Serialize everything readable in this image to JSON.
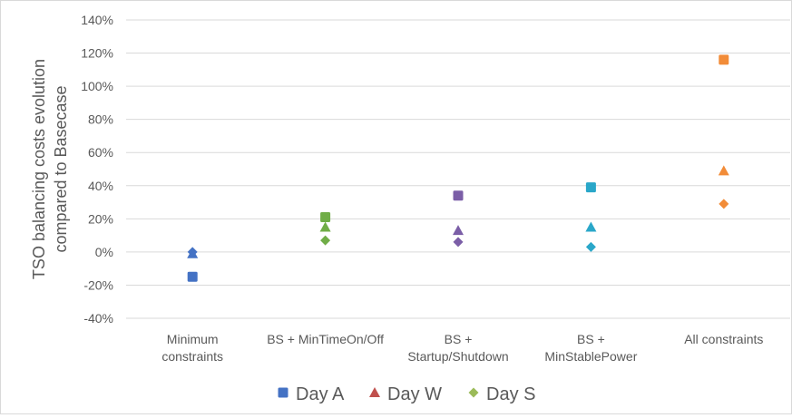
{
  "chart_data": {
    "type": "scatter",
    "ylabel": "TSO balancing costs evolution compared to Basecase",
    "ylabel_lines": [
      "TSO balancing costs evolution",
      "compared to Basecase"
    ],
    "ylim": [
      -40,
      140
    ],
    "yticks": [
      -40,
      -20,
      0,
      20,
      40,
      60,
      80,
      100,
      120,
      140
    ],
    "ytick_labels": [
      "-40%",
      "-20%",
      "0%",
      "20%",
      "40%",
      "60%",
      "80%",
      "100%",
      "120%",
      "140%"
    ],
    "grid": true,
    "legend_position": "bottom",
    "categories": [
      "Minimum constraints",
      "BS + MinTimeOn/Off",
      "BS + Startup/Shutdown",
      "BS + MinStablePower",
      "All constraints"
    ],
    "category_label_lines": [
      [
        "Minimum",
        "constraints"
      ],
      [
        "BS + MinTimeOn/Off"
      ],
      [
        "BS +",
        "Startup/Shutdown"
      ],
      [
        "BS +",
        "MinStablePower"
      ],
      [
        "All constraints"
      ]
    ],
    "category_colors": [
      "#4472c4",
      "#70ad47",
      "#7b5ea7",
      "#2aa7c9",
      "#f28c38"
    ],
    "series": [
      {
        "name": "Day A",
        "marker": "square",
        "legend_color": "#4472c4",
        "values": [
          -15,
          21,
          34,
          39,
          116
        ]
      },
      {
        "name": "Day W",
        "marker": "triangle",
        "legend_color": "#c0504d",
        "values": [
          -1,
          15,
          13,
          15,
          49
        ]
      },
      {
        "name": "Day S",
        "marker": "diamond",
        "legend_color": "#9bbb59",
        "values": [
          0,
          7,
          6,
          3,
          29
        ]
      }
    ]
  }
}
